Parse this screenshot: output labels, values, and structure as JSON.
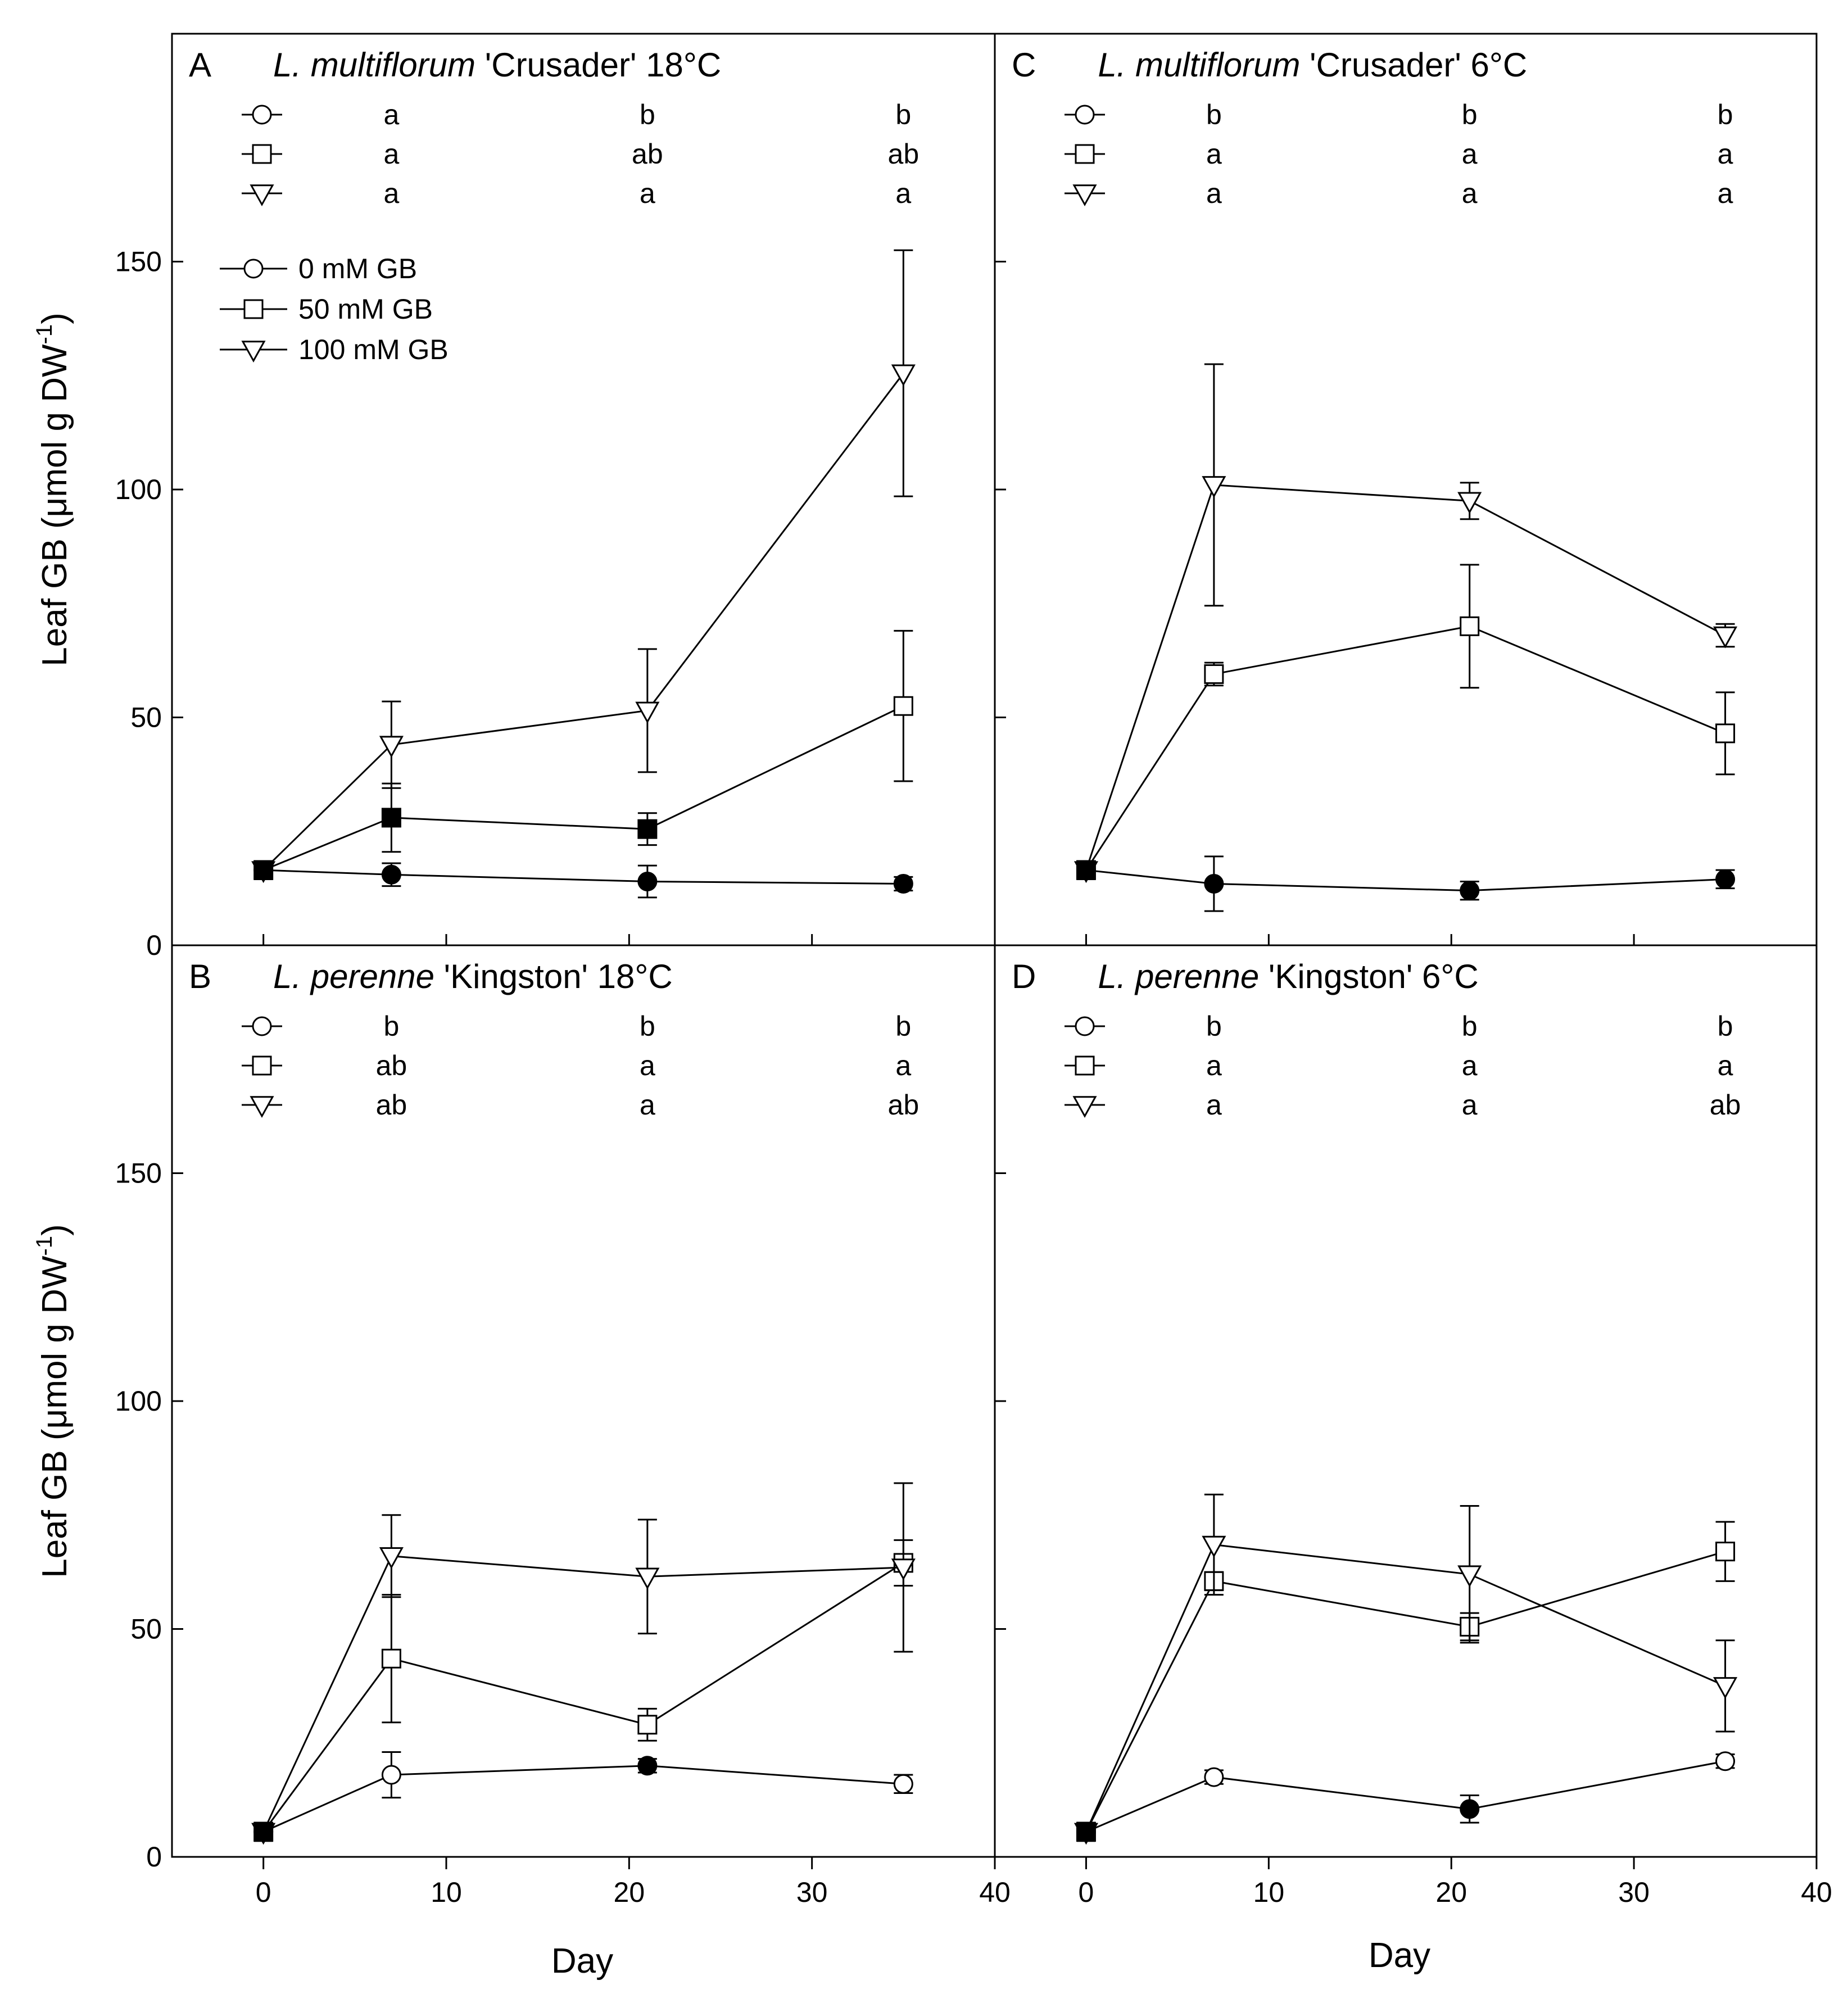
{
  "figure": {
    "ylabel_main": "Leaf GB (",
    "ylabel_mu": "μ",
    "ylabel_rest": "mol g DW",
    "ylabel_sup": "-1",
    "ylabel_close": ")",
    "xlabel": "Day",
    "legend": [
      {
        "label": "0 mM GB",
        "marker": "circle"
      },
      {
        "label": "50 mM GB",
        "marker": "square"
      },
      {
        "label": "100 mM GB",
        "marker": "triangle"
      }
    ]
  },
  "chart_data": [
    {
      "panel": "A",
      "type": "line",
      "title_species": "L. multiflorum",
      "title_rest": " 'Crusader' 18°C",
      "x": [
        0,
        7,
        21,
        35
      ],
      "xlim": [
        -5,
        40
      ],
      "ylim": [
        0,
        200
      ],
      "xticks": [
        0,
        10,
        20,
        30,
        40
      ],
      "yticks": [
        0,
        50,
        100,
        150
      ],
      "series": [
        {
          "name": "0 mM GB",
          "marker": "circle",
          "values": [
            16.5,
            15.5,
            14,
            13.5
          ],
          "err": [
            2,
            2.5,
            3.5,
            1.5
          ],
          "filled": [
            true,
            true,
            true,
            true
          ]
        },
        {
          "name": "50 mM GB",
          "marker": "square",
          "values": [
            16.5,
            28,
            25.5,
            52.5
          ],
          "err": [
            2,
            7.5,
            3.5,
            16.5
          ],
          "filled": [
            true,
            true,
            true,
            false
          ]
        },
        {
          "name": "100 mM GB",
          "marker": "triangle",
          "values": [
            16.5,
            44,
            51.5,
            125.5
          ],
          "err": [
            2,
            9.5,
            13.5,
            27
          ],
          "filled": [
            true,
            false,
            false,
            false
          ]
        }
      ],
      "letters": [
        [
          "a",
          "b",
          "b"
        ],
        [
          "a",
          "ab",
          "ab"
        ],
        [
          "a",
          "a",
          "a"
        ]
      ]
    },
    {
      "panel": "B",
      "type": "line",
      "title_species": "L. perenne",
      "title_rest": " 'Kingston' 18°C",
      "x": [
        0,
        7,
        21,
        35
      ],
      "xlim": [
        -5,
        40
      ],
      "ylim": [
        0,
        200
      ],
      "xticks": [
        0,
        10,
        20,
        30,
        40
      ],
      "yticks": [
        0,
        50,
        100,
        150
      ],
      "series": [
        {
          "name": "0 mM GB",
          "marker": "circle",
          "values": [
            5.5,
            18,
            20,
            16
          ],
          "err": [
            2,
            5,
            1.5,
            2
          ],
          "filled": [
            true,
            false,
            true,
            false
          ]
        },
        {
          "name": "50 mM GB",
          "marker": "square",
          "values": [
            5.5,
            43.5,
            29,
            64.5
          ],
          "err": [
            2,
            14,
            3.5,
            5
          ],
          "filled": [
            true,
            false,
            false,
            false
          ]
        },
        {
          "name": "100 mM GB",
          "marker": "triangle",
          "values": [
            5.5,
            66,
            61.5,
            63.5
          ],
          "err": [
            2,
            9,
            12.5,
            18.5
          ],
          "filled": [
            true,
            false,
            false,
            false
          ]
        }
      ],
      "letters": [
        [
          "b",
          "b",
          "b"
        ],
        [
          "ab",
          "a",
          "a"
        ],
        [
          "ab",
          "a",
          "ab"
        ]
      ]
    },
    {
      "panel": "C",
      "type": "line",
      "title_species": "L. multiflorum",
      "title_rest": " 'Crusader' 6°C",
      "x": [
        0,
        7,
        21,
        35
      ],
      "xlim": [
        -5,
        40
      ],
      "ylim": [
        0,
        200
      ],
      "xticks": [
        0,
        10,
        20,
        30,
        40
      ],
      "yticks": [
        0,
        50,
        100,
        150
      ],
      "series": [
        {
          "name": "0 mM GB",
          "marker": "circle",
          "values": [
            16.5,
            13.5,
            12,
            14.5
          ],
          "err": [
            2,
            6,
            2,
            2
          ],
          "filled": [
            true,
            true,
            true,
            true
          ]
        },
        {
          "name": "50 mM GB",
          "marker": "square",
          "values": [
            16.5,
            59.5,
            70,
            46.5
          ],
          "err": [
            2,
            2.5,
            13.5,
            9
          ],
          "filled": [
            true,
            false,
            false,
            false
          ]
        },
        {
          "name": "100 mM GB",
          "marker": "triangle",
          "values": [
            16.5,
            101,
            97.5,
            68
          ],
          "err": [
            2,
            26.5,
            4,
            2.5
          ],
          "filled": [
            true,
            false,
            false,
            false
          ]
        }
      ],
      "letters": [
        [
          "b",
          "b",
          "b"
        ],
        [
          "a",
          "a",
          "a"
        ],
        [
          "a",
          "a",
          "a"
        ]
      ]
    },
    {
      "panel": "D",
      "type": "line",
      "title_species": "L. perenne",
      "title_rest": " 'Kingston' 6°C",
      "x": [
        0,
        7,
        21,
        35
      ],
      "xlim": [
        -5,
        40
      ],
      "ylim": [
        0,
        200
      ],
      "xticks": [
        0,
        10,
        20,
        30,
        40
      ],
      "yticks": [
        0,
        50,
        100,
        150
      ],
      "series": [
        {
          "name": "0 mM GB",
          "marker": "circle",
          "values": [
            5.5,
            17.5,
            10.5,
            21
          ],
          "err": [
            2,
            1.5,
            3,
            1.5
          ],
          "filled": [
            true,
            false,
            true,
            false
          ]
        },
        {
          "name": "50 mM GB",
          "marker": "square",
          "values": [
            5.5,
            60.5,
            50.5,
            67
          ],
          "err": [
            2,
            2,
            3,
            6.5
          ],
          "filled": [
            true,
            false,
            false,
            false
          ]
        },
        {
          "name": "100 mM GB",
          "marker": "triangle",
          "values": [
            5.5,
            68.5,
            62,
            37.5
          ],
          "err": [
            2,
            11,
            15,
            10
          ],
          "filled": [
            true,
            false,
            false,
            false
          ]
        }
      ],
      "letters": [
        [
          "b",
          "b",
          "b"
        ],
        [
          "a",
          "a",
          "a"
        ],
        [
          "a",
          "a",
          "ab"
        ]
      ]
    }
  ]
}
